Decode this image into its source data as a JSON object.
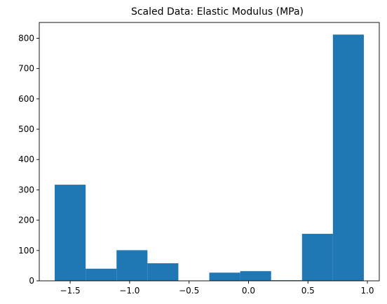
{
  "chart_data": {
    "type": "bar",
    "title": "Scaled Data: Elastic Modulus (MPa)",
    "xlabel": "",
    "ylabel": "",
    "bins": [
      {
        "x0": -1.63,
        "x1": -1.37,
        "count": 317
      },
      {
        "x0": -1.37,
        "x1": -1.11,
        "count": 40
      },
      {
        "x0": -1.11,
        "x1": -0.85,
        "count": 101
      },
      {
        "x0": -0.85,
        "x1": -0.59,
        "count": 58
      },
      {
        "x0": -0.59,
        "x1": -0.33,
        "count": 0
      },
      {
        "x0": -0.33,
        "x1": -0.07,
        "count": 27
      },
      {
        "x0": -0.07,
        "x1": 0.19,
        "count": 32
      },
      {
        "x0": 0.19,
        "x1": 0.45,
        "count": 2
      },
      {
        "x0": 0.45,
        "x1": 0.71,
        "count": 155
      },
      {
        "x0": 0.71,
        "x1": 0.97,
        "count": 812
      }
    ],
    "xlim": [
      -1.76,
      1.1
    ],
    "ylim": [
      0,
      852
    ],
    "xticks": [
      -1.5,
      -1.0,
      -0.5,
      0.0,
      0.5,
      1.0
    ],
    "xtick_labels": [
      "−1.5",
      "−1.0",
      "−0.5",
      "0.0",
      "0.5",
      "1.0"
    ],
    "yticks": [
      0,
      100,
      200,
      300,
      400,
      500,
      600,
      700,
      800
    ],
    "ytick_labels": [
      "0",
      "100",
      "200",
      "300",
      "400",
      "500",
      "600",
      "700",
      "800"
    ],
    "bar_color": "#1f77b4",
    "grid": false,
    "legend": "none"
  }
}
